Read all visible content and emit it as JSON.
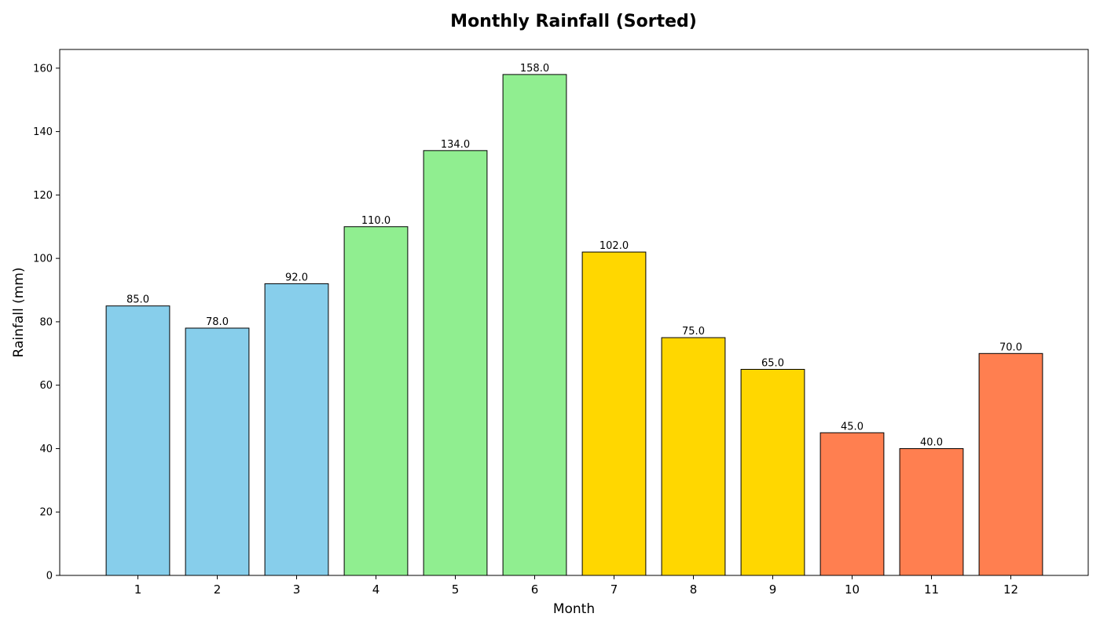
{
  "chart_data": {
    "type": "bar",
    "title": "Monthly Rainfall (Sorted)",
    "xlabel": "Month",
    "ylabel": "Rainfall (mm)",
    "categories": [
      "1",
      "2",
      "3",
      "4",
      "5",
      "6",
      "7",
      "8",
      "9",
      "10",
      "11",
      "12"
    ],
    "values": [
      85.0,
      78.0,
      92.0,
      110.0,
      134.0,
      158.0,
      102.0,
      75.0,
      65.0,
      45.0,
      40.0,
      70.0
    ],
    "value_labels": [
      "85.0",
      "78.0",
      "92.0",
      "110.0",
      "134.0",
      "158.0",
      "102.0",
      "75.0",
      "65.0",
      "45.0",
      "40.0",
      "70.0"
    ],
    "colors": [
      "#87CEEB",
      "#87CEEB",
      "#87CEEB",
      "#90EE90",
      "#90EE90",
      "#90EE90",
      "#FFD700",
      "#FFD700",
      "#FFD700",
      "#FF7F50",
      "#FF7F50",
      "#FF7F50"
    ],
    "edge_color": "#000000",
    "ylim": [
      0,
      165.9
    ],
    "yticks": [
      0,
      20,
      40,
      60,
      80,
      100,
      120,
      140,
      160
    ],
    "grid": false,
    "legend": "none"
  }
}
